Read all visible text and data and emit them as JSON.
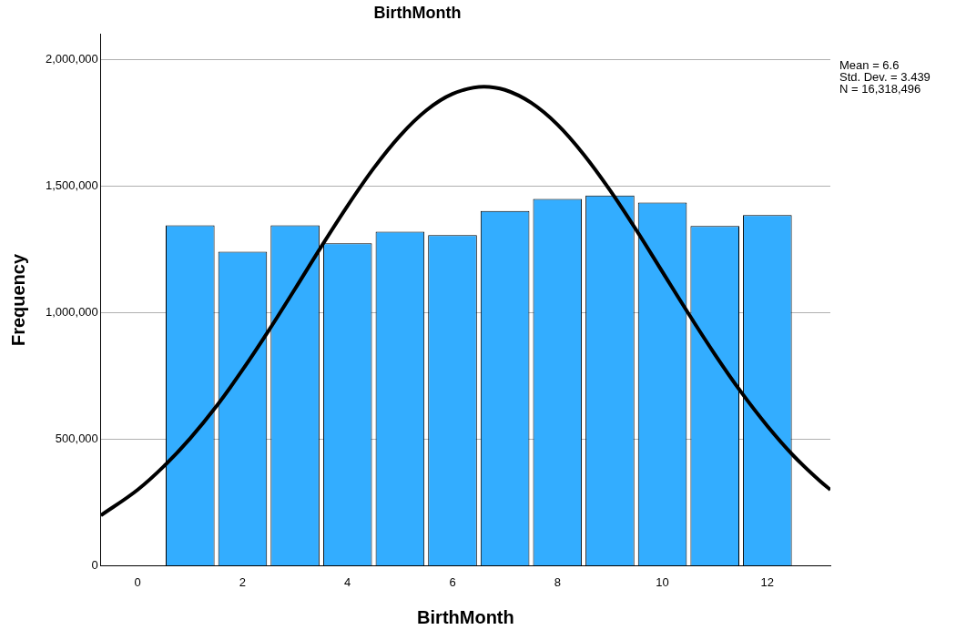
{
  "chart_data": {
    "type": "histogram",
    "title": "BirthMonth",
    "xlabel": "BirthMonth",
    "ylabel": "Frequency",
    "bins": [
      0.5,
      1.5,
      2.5,
      3.5,
      4.5,
      5.5,
      6.5,
      7.5,
      8.5,
      9.5,
      10.5,
      11.5,
      12.5
    ],
    "values": [
      1345000,
      1241000,
      1345000,
      1274000,
      1320000,
      1306000,
      1402000,
      1449000,
      1463000,
      1435000,
      1342000,
      1385000
    ],
    "color": "#33adff",
    "series": [
      {
        "type": "line",
        "color": "#000000",
        "marker": "none",
        "x": [
          -0.7,
          0,
          0.5,
          1,
          1.5,
          2,
          2.5,
          3,
          3.5,
          4,
          4.5,
          5,
          5.5,
          6,
          6.6,
          7,
          7.5,
          8,
          8.5,
          9,
          9.5,
          10,
          10.5,
          11,
          11.5,
          12,
          12.5,
          13,
          13.2
        ],
        "values": [
          199000,
          300000,
          393000,
          503000,
          630000,
          774000,
          930000,
          1094000,
          1261000,
          1422000,
          1571000,
          1699000,
          1799000,
          1864000,
          1893000,
          1880000,
          1829000,
          1743000,
          1625000,
          1484000,
          1327000,
          1161000,
          995000,
          835000,
          686000,
          552000,
          434000,
          335000,
          300000
        ]
      }
    ],
    "xlim": [
      -0.7,
      13.2
    ],
    "xticks": [
      0,
      2,
      4,
      6,
      8,
      10,
      12
    ],
    "ylim": [
      0,
      2100000
    ],
    "yticks": [
      {
        "value": 0,
        "label": "0"
      },
      {
        "value": 500000,
        "label": "500,000"
      },
      {
        "value": 1000000,
        "label": "1,000,000"
      },
      {
        "value": 1500000,
        "label": "1,500,000"
      },
      {
        "value": 2000000,
        "label": "2,000,000"
      }
    ],
    "grid": "y",
    "legend": false,
    "annotations": [
      "Mean = 6.6",
      "Std. Dev. = 3.439",
      "N = 16,318,496"
    ]
  }
}
